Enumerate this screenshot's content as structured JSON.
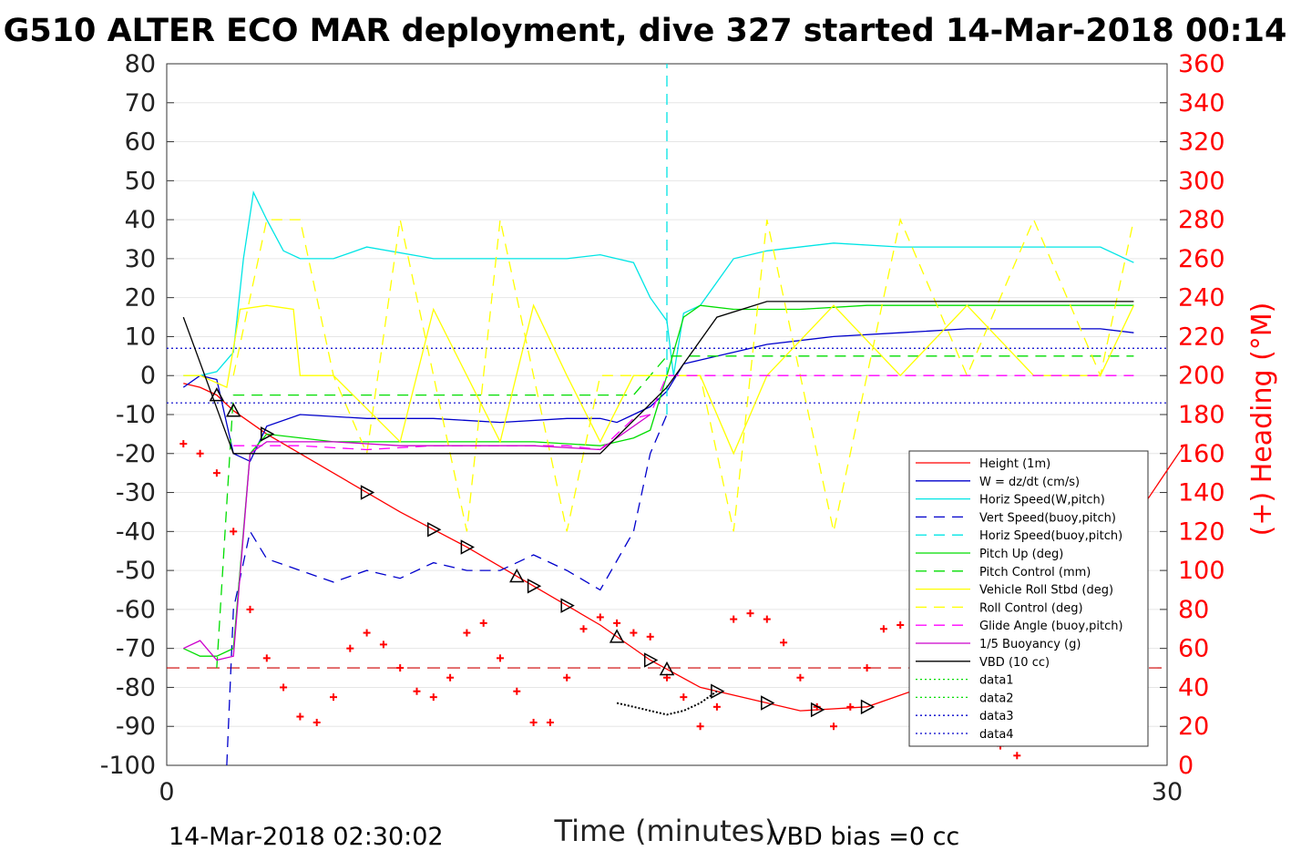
{
  "chart_data": {
    "type": "line",
    "title": "G510 ALTER ECO MAR deployment, dive 327 started 14-Mar-2018 00:14",
    "xlabel": "Time (minutes)",
    "ylabel_right": "(+) Heading (°M)",
    "xlim": [
      0,
      30
    ],
    "ylim": [
      -100,
      80
    ],
    "ylim_right": [
      0,
      360
    ],
    "x_ticks": [
      "0",
      "30"
    ],
    "y_ticks": [
      "80",
      "70",
      "60",
      "50",
      "40",
      "30",
      "20",
      "10",
      "0",
      "-10",
      "-20",
      "-30",
      "-40",
      "-50",
      "-60",
      "-70",
      "-80",
      "-90",
      "-100"
    ],
    "y_ticks_right": [
      "360",
      "340",
      "320",
      "300",
      "280",
      "260",
      "240",
      "220",
      "200",
      "180",
      "160",
      "140",
      "120",
      "100",
      "80",
      "60",
      "40",
      "20",
      "0"
    ],
    "grid": true,
    "legend_position": "lower-right",
    "footer_left": "14-Mar-2018 02:30:02",
    "footer_right": "VBD bias =0 cc",
    "colors": {
      "height": "#ff0000",
      "w": "#0000cc",
      "horiz": "#00e5e5",
      "pitch": "#00dd00",
      "roll": "#ffff00",
      "glide": "#ff00ff",
      "buoy": "#cc00cc",
      "vbd": "#000000",
      "heading": "#ff0000"
    },
    "series": [
      {
        "name": "Height (1m)",
        "color": "#ff0000",
        "dash": "",
        "x": [
          0.5,
          1,
          1.5,
          2,
          3,
          5,
          7,
          9,
          11,
          13,
          14.5,
          16,
          19,
          21,
          23,
          25,
          27,
          29,
          30.5
        ],
        "y": [
          -2,
          -3,
          -5,
          -9,
          -15,
          -25,
          -35,
          -44,
          -54,
          -64,
          -73,
          -80,
          -86,
          -85,
          -79,
          -67,
          -57,
          -37,
          -18
        ]
      },
      {
        "name": "W = dz/dt (cm/s)",
        "color": "#0000cc",
        "dash": "",
        "x": [
          0.5,
          1,
          1.5,
          2,
          2.5,
          3,
          4,
          6,
          8,
          10,
          12,
          13,
          13.5,
          14,
          14.5,
          15,
          15.5,
          16,
          17,
          18,
          20,
          22,
          24,
          26,
          28,
          29
        ],
        "y": [
          -3,
          0,
          -1,
          -20,
          -22,
          -13,
          -10,
          -11,
          -11,
          -12,
          -11,
          -11,
          -12,
          -10,
          -8,
          -4,
          3,
          4,
          6,
          8,
          10,
          11,
          12,
          12,
          12,
          11
        ]
      },
      {
        "name": "Horiz Speed(W,pitch)",
        "color": "#00e5e5",
        "dash": "",
        "x": [
          0.5,
          1,
          1.5,
          2,
          2.3,
          2.6,
          3,
          3.5,
          4,
          5,
          6,
          8,
          10,
          12,
          13,
          14,
          14.5,
          15,
          15.2,
          15.5,
          16,
          16.5,
          17,
          18,
          20,
          22,
          24,
          26,
          28,
          29
        ],
        "y": [
          0,
          0,
          1,
          6,
          30,
          47,
          40,
          32,
          30,
          30,
          33,
          30,
          30,
          30,
          31,
          29,
          20,
          14,
          0,
          16,
          18,
          24,
          30,
          32,
          34,
          33,
          33,
          33,
          33,
          29
        ]
      },
      {
        "name": "Vert Speed(buoy,pitch)",
        "color": "#0000cc",
        "dash": "12,8",
        "x": [
          1.8,
          2,
          2.5,
          3,
          4,
          5,
          6,
          7,
          8,
          9,
          10,
          11,
          12,
          13,
          14,
          14.5,
          15
        ],
        "y": [
          -100,
          -60,
          -40,
          -47,
          -50,
          -53,
          -50,
          -52,
          -48,
          -50,
          -50,
          -46,
          -50,
          -55,
          -40,
          -20,
          -10
        ]
      },
      {
        "name": "Horiz Speed(buoy,pitch)",
        "color": "#00e5e5",
        "dash": "12,8",
        "x": [
          15,
          15
        ],
        "y": [
          -10,
          80
        ]
      },
      {
        "name": "Pitch Up (deg)",
        "color": "#00dd00",
        "dash": "",
        "x": [
          0.5,
          1,
          1.5,
          2,
          2.5,
          3,
          5,
          7,
          9,
          11,
          13,
          14,
          14.5,
          15,
          15.5,
          16,
          17,
          19,
          21,
          23,
          25,
          27,
          29
        ],
        "y": [
          -70,
          -72,
          -72,
          -70,
          -20,
          -15,
          -17,
          -17,
          -17,
          -17,
          -18,
          -16,
          -14,
          0,
          15,
          18,
          17,
          17,
          18,
          18,
          18,
          18,
          18
        ]
      },
      {
        "name": "Pitch Control (mm)",
        "color": "#00dd00",
        "dash": "12,8",
        "x": [
          1.5,
          2,
          5,
          10,
          14,
          15,
          29
        ],
        "y": [
          -75,
          -5,
          -5,
          -5,
          -5,
          5,
          5
        ]
      },
      {
        "name": "Vehicle Roll Stbd (deg)",
        "color": "#ffff00",
        "dash": "",
        "x": [
          0.5,
          1,
          1.8,
          2.2,
          3,
          3.8,
          4,
          5,
          7,
          8,
          9,
          10,
          11,
          12,
          13,
          14,
          15,
          16,
          17,
          18,
          20,
          22,
          24,
          26,
          28,
          29
        ],
        "y": [
          0,
          0,
          -3,
          17,
          18,
          17,
          0,
          0,
          -17,
          17,
          0,
          -17,
          18,
          0,
          -17,
          0,
          0,
          0,
          -20,
          0,
          18,
          0,
          18,
          0,
          0,
          18
        ]
      },
      {
        "name": "Roll Control (deg)",
        "color": "#ffff00",
        "dash": "12,8",
        "x": [
          2,
          3,
          4,
          5,
          6,
          7,
          8,
          9,
          10,
          11,
          12,
          13,
          14,
          15,
          16,
          17,
          18,
          19,
          20,
          22,
          24,
          26,
          28,
          29
        ],
        "y": [
          0,
          40,
          40,
          0,
          -20,
          40,
          0,
          -40,
          40,
          0,
          -40,
          0,
          0,
          0,
          0,
          -40,
          40,
          0,
          -40,
          40,
          0,
          40,
          0,
          40
        ]
      },
      {
        "name": "Glide Angle (buoy,pitch)",
        "color": "#ff00ff",
        "dash": "12,8",
        "x": [
          2,
          4,
          6,
          8,
          10,
          12,
          13,
          14,
          14.5,
          15,
          29
        ],
        "y": [
          -18,
          -18,
          -19,
          -18,
          -18,
          -18,
          -19,
          -11,
          -10,
          0,
          0
        ]
      },
      {
        "name": "1/5 Buoyancy (g)",
        "color": "#cc00cc",
        "dash": "",
        "x": [
          0.5,
          1,
          1.5,
          2,
          2.5,
          3,
          5,
          7,
          9,
          11,
          13,
          14.5
        ],
        "y": [
          -70,
          -68,
          -73,
          -72,
          -20,
          -17,
          -17,
          -18,
          -18,
          -18,
          -19,
          -10
        ]
      },
      {
        "name": "VBD (10 cc)",
        "color": "#000000",
        "dash": "",
        "x": [
          0.5,
          2,
          3,
          5,
          8,
          11,
          13,
          15,
          16.5,
          18,
          20,
          22,
          24,
          26,
          28,
          29
        ],
        "y": [
          15,
          -20,
          -20,
          -20,
          -20,
          -20,
          -20,
          -3,
          15,
          19,
          19,
          19,
          19,
          19,
          19,
          19
        ]
      }
    ],
    "series_legend_only": [
      {
        "name": "data1",
        "color": "#00dd00",
        "dash": "2,3"
      },
      {
        "name": "data2",
        "color": "#00dd00",
        "dash": "2,3"
      },
      {
        "name": "data3",
        "color": "#0000cc",
        "dash": "2,3"
      },
      {
        "name": "data4",
        "color": "#0000cc",
        "dash": "2,3"
      }
    ],
    "reference_lines": [
      {
        "y": 7,
        "color": "#0000cc",
        "dash": "2,3"
      },
      {
        "y": -7,
        "color": "#0000cc",
        "dash": "2,3"
      },
      {
        "y": -75,
        "color": "#cc0000",
        "dash": "14,8"
      }
    ],
    "heading_series": {
      "axis": "right",
      "color": "#ff0000",
      "x": [
        0.5,
        1,
        1.5,
        2,
        2.5,
        3,
        3.5,
        4,
        4.5,
        5,
        5.5,
        6,
        6.5,
        7,
        7.5,
        8,
        8.5,
        9,
        9.5,
        10,
        10.5,
        11,
        11.5,
        12,
        12.5,
        13,
        13.5,
        14,
        14.5,
        15,
        15.5,
        16,
        16.5,
        17,
        17.5,
        18,
        18.5,
        19,
        19.5,
        20,
        20.5,
        21,
        21.5,
        22,
        22.5,
        23,
        23.5,
        24,
        24.5,
        25,
        25.5,
        26,
        26.5,
        27,
        27.5,
        28,
        28.5,
        29
      ],
      "y": [
        165,
        160,
        150,
        120,
        80,
        55,
        40,
        25,
        22,
        35,
        60,
        68,
        62,
        50,
        38,
        35,
        45,
        68,
        73,
        55,
        38,
        22,
        22,
        45,
        70,
        76,
        73,
        68,
        66,
        45,
        35,
        20,
        30,
        75,
        78,
        75,
        63,
        45,
        30,
        20,
        30,
        50,
        70,
        72,
        65,
        55,
        40,
        25,
        15,
        10,
        5,
        15,
        35,
        60,
        80,
        75,
        65,
        55
      ]
    },
    "markers": {
      "color": "#000000",
      "triangle_up_x": [
        1.5,
        2,
        10.5,
        13.5,
        15
      ],
      "triangle_down_x": [
        3,
        6,
        8,
        9,
        11,
        12,
        14.5,
        16.5,
        18,
        19.5,
        21,
        22.5,
        24
      ],
      "path_x": [
        13.5,
        14,
        14.5,
        15,
        15.5,
        16,
        16.5
      ],
      "path_y": [
        -84,
        -85,
        -86,
        -87,
        -86,
        -84,
        -81
      ]
    }
  }
}
